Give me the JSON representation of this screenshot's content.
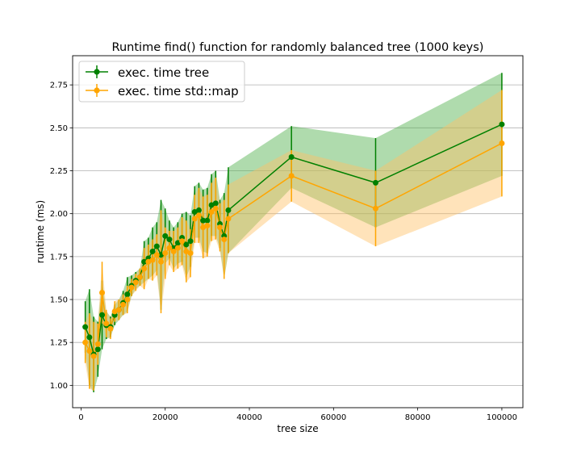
{
  "chart_data": {
    "type": "line",
    "title": "Runtime find() function for randomly balanced tree (1000 keys)",
    "xlabel": "tree size",
    "ylabel": "runtime (ms)",
    "xlim": [
      -2000,
      105000
    ],
    "ylim": [
      0.87,
      2.92
    ],
    "x_ticks": [
      0,
      20000,
      40000,
      60000,
      80000,
      100000
    ],
    "x_tick_labels": [
      "0",
      "20000",
      "40000",
      "60000",
      "80000",
      "100000"
    ],
    "y_ticks": [
      1.0,
      1.25,
      1.5,
      1.75,
      2.0,
      2.25,
      2.5,
      2.75
    ],
    "y_tick_labels": [
      "1.00",
      "1.25",
      "1.50",
      "1.75",
      "2.00",
      "2.25",
      "2.50",
      "2.75"
    ],
    "grid": "horizontal",
    "legend_position": "top-left",
    "x": [
      1000,
      2000,
      3000,
      4000,
      5000,
      6000,
      7000,
      8000,
      9000,
      10000,
      11000,
      12000,
      13000,
      14000,
      15000,
      16000,
      17000,
      18000,
      19000,
      20000,
      21000,
      22000,
      23000,
      24000,
      25000,
      26000,
      27000,
      28000,
      29000,
      30000,
      31000,
      32000,
      33000,
      34000,
      35000,
      50000,
      70000,
      100000
    ],
    "series": [
      {
        "name": "exec. time tree",
        "color": "#008000",
        "band_color": "#4daf4a",
        "values": [
          1.34,
          1.28,
          1.18,
          1.21,
          1.41,
          1.35,
          1.34,
          1.41,
          1.44,
          1.48,
          1.53,
          1.58,
          1.61,
          1.63,
          1.72,
          1.74,
          1.78,
          1.81,
          1.76,
          1.87,
          1.85,
          1.8,
          1.83,
          1.86,
          1.82,
          1.84,
          2.01,
          2.02,
          1.96,
          1.96,
          2.05,
          2.06,
          1.94,
          1.87,
          2.02,
          2.33,
          2.18,
          2.52
        ],
        "errors": [
          0.15,
          0.28,
          0.22,
          0.16,
          0.2,
          0.08,
          0.06,
          0.06,
          0.06,
          0.07,
          0.1,
          0.06,
          0.05,
          0.05,
          0.12,
          0.12,
          0.14,
          0.14,
          0.32,
          0.16,
          0.11,
          0.12,
          0.12,
          0.14,
          0.19,
          0.15,
          0.15,
          0.16,
          0.18,
          0.19,
          0.18,
          0.19,
          0.14,
          0.25,
          0.25,
          0.18,
          0.26,
          0.3
        ]
      },
      {
        "name": "exec. time std::map",
        "color": "#ffa500",
        "band_color": "#ffc266",
        "values": [
          1.25,
          1.2,
          1.17,
          1.24,
          1.54,
          1.36,
          1.33,
          1.43,
          1.44,
          1.47,
          1.5,
          1.57,
          1.6,
          1.63,
          1.68,
          1.72,
          1.73,
          1.76,
          1.72,
          1.77,
          1.8,
          1.78,
          1.8,
          1.84,
          1.78,
          1.77,
          1.97,
          1.99,
          1.92,
          1.93,
          2.01,
          2.03,
          1.92,
          1.85,
          1.97,
          2.22,
          2.03,
          2.41
        ],
        "errors": [
          0.12,
          0.22,
          0.2,
          0.12,
          0.18,
          0.08,
          0.06,
          0.06,
          0.06,
          0.06,
          0.08,
          0.05,
          0.05,
          0.05,
          0.12,
          0.1,
          0.12,
          0.12,
          0.3,
          0.15,
          0.1,
          0.12,
          0.12,
          0.14,
          0.18,
          0.14,
          0.14,
          0.16,
          0.18,
          0.18,
          0.17,
          0.18,
          0.14,
          0.23,
          0.2,
          0.15,
          0.22,
          0.31
        ]
      }
    ]
  }
}
